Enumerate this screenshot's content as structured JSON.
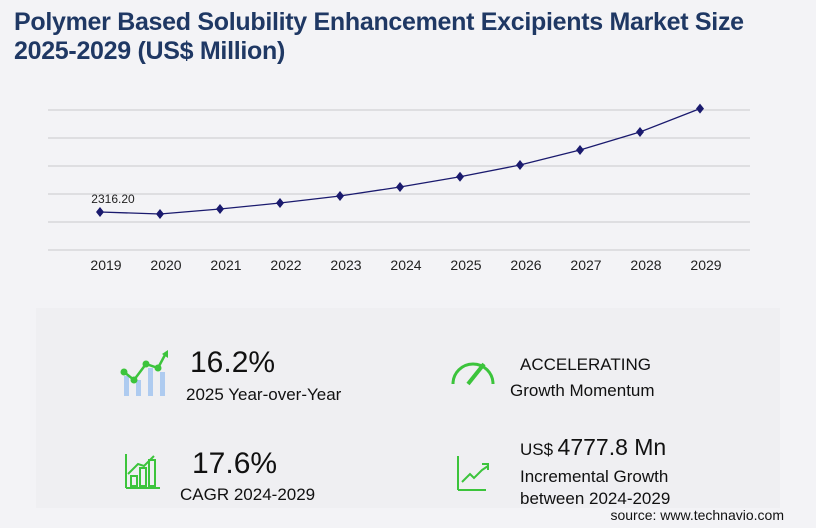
{
  "title": "Polymer Based Solubility Enhancement Excipients Market Size 2025-2029 (US$ Million)",
  "chart_data": {
    "type": "line",
    "title": "Polymer Based Solubility Enhancement Excipients Market Size 2025-2029 (US$ Million)",
    "categories": [
      "2019",
      "2020",
      "2021",
      "2022",
      "2023",
      "2024",
      "2025",
      "2026",
      "2027",
      "2028",
      "2029"
    ],
    "values": [
      2316.2,
      2194,
      2499,
      2865,
      3291,
      3840,
      4462,
      5181,
      6095,
      7192,
      8618
    ],
    "data_labels": {
      "2019": "2316.20"
    },
    "ylim": [
      0,
      8533
    ],
    "grid": true,
    "line_color": "#1a1a6e"
  },
  "stats": {
    "yoy_value": "16.2%",
    "yoy_label": "2025 Year-over-Year",
    "momentum_value": "ACCELERATING",
    "momentum_label": "Growth Momentum",
    "cagr_value": "17.6%",
    "cagr_label": "CAGR 2024-2029",
    "incr_prefix": "US$",
    "incr_value": "4777.8 Mn",
    "incr_label1": "Incremental Growth",
    "incr_label2": "between 2024-2029"
  },
  "accent_color": "#3cc43c",
  "source": "source: www.technavio.com"
}
